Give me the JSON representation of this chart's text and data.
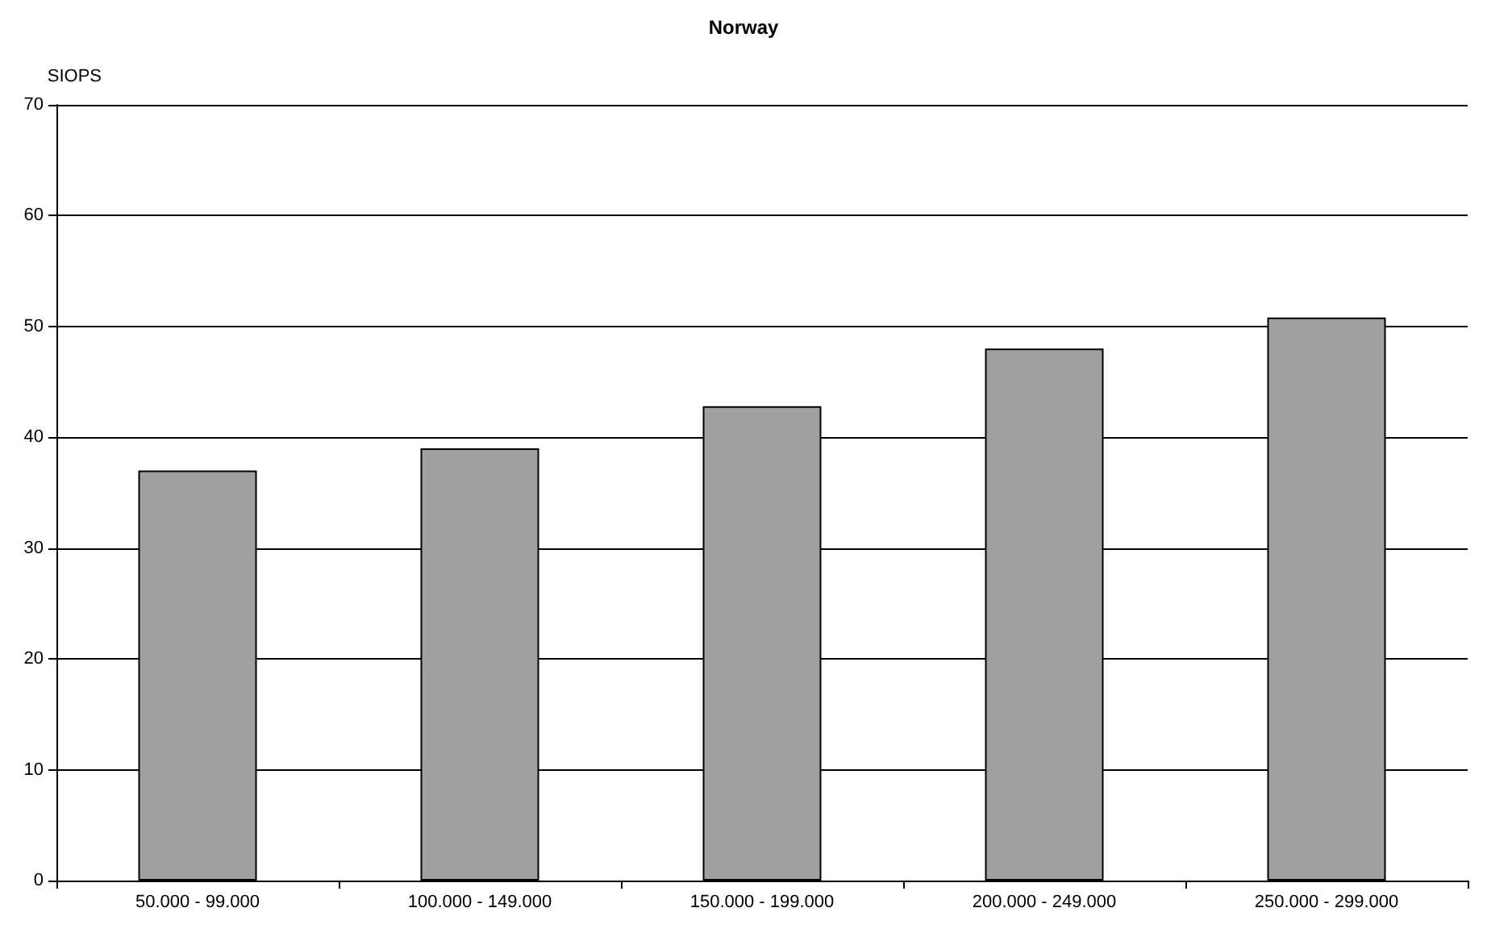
{
  "chart_data": {
    "type": "bar",
    "title": "Norway",
    "ylabel": "SIOPS",
    "categories": [
      "50.000 - 99.000",
      "100.000 - 149.000",
      "150.000 - 199.000",
      "200.000 - 249.000",
      "250.000 - 299.000"
    ],
    "values": [
      37,
      39,
      42.8,
      48,
      50.8
    ],
    "color": "#a0a0a0",
    "ylim": [
      0,
      70
    ],
    "yticks": [
      0,
      10,
      20,
      30,
      40,
      50,
      60,
      70
    ],
    "grid": "y"
  }
}
